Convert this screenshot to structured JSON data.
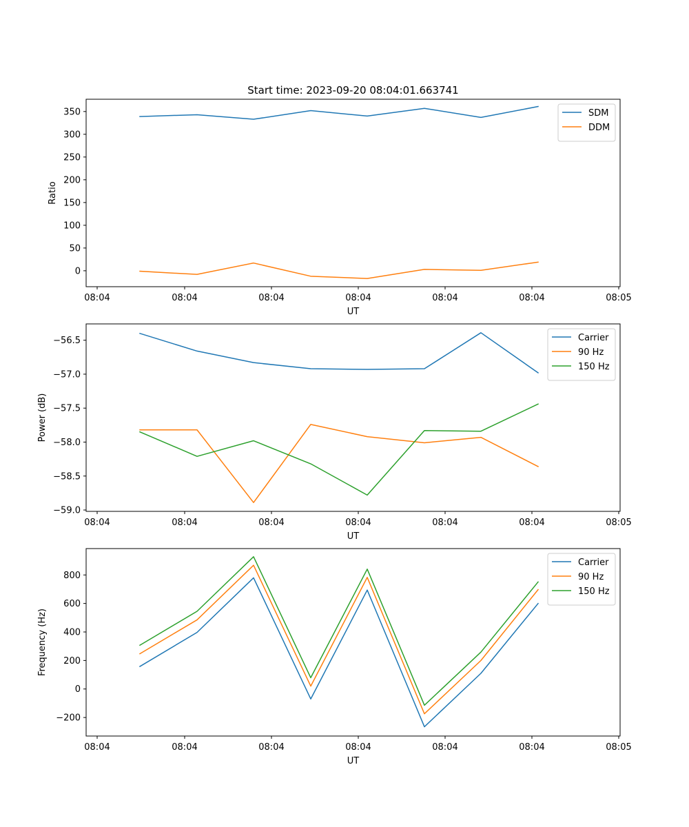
{
  "chart_data": [
    {
      "type": "line",
      "title": "Start time: 2023-09-20 08:04:01.663741",
      "xlabel": "UT",
      "ylabel": "Ratio",
      "x_tick_labels": [
        "08:04",
        "08:04",
        "08:04",
        "08:04",
        "08:04",
        "08:04",
        "08:05"
      ],
      "y_ticks": [
        0,
        50,
        100,
        150,
        200,
        250,
        300,
        350
      ],
      "y_tick_labels": [
        "0",
        "50",
        "100",
        "150",
        "200",
        "250",
        "300",
        "350"
      ],
      "ylim": [
        -35,
        377
      ],
      "legend_position": "top-right",
      "series": [
        {
          "name": "SDM",
          "color": "#1f77b4",
          "values": [
            339,
            343,
            333,
            352,
            340,
            357,
            337,
            361
          ]
        },
        {
          "name": "DDM",
          "color": "#ff7f0e",
          "values": [
            -1,
            -8,
            17,
            -12,
            -17,
            3,
            1,
            19
          ]
        }
      ]
    },
    {
      "type": "line",
      "title": "",
      "xlabel": "UT",
      "ylabel": "Power (dB)",
      "x_tick_labels": [
        "08:04",
        "08:04",
        "08:04",
        "08:04",
        "08:04",
        "08:04",
        "08:05"
      ],
      "y_ticks": [
        -59.0,
        -58.5,
        -58.0,
        -57.5,
        -57.0,
        -56.5
      ],
      "y_tick_labels": [
        "−59.0",
        "−58.5",
        "−58.0",
        "−57.5",
        "−57.0",
        "−56.5"
      ],
      "ylim": [
        -59.02,
        -56.26
      ],
      "legend_position": "top-right",
      "series": [
        {
          "name": "Carrier",
          "color": "#1f77b4",
          "values": [
            -56.4,
            -56.66,
            -56.83,
            -56.92,
            -56.93,
            -56.92,
            -56.39,
            -56.98
          ]
        },
        {
          "name": "90 Hz",
          "color": "#ff7f0e",
          "values": [
            -57.82,
            -57.82,
            -58.89,
            -57.74,
            -57.92,
            -58.01,
            -57.93,
            -58.36
          ]
        },
        {
          "name": "150 Hz",
          "color": "#2ca02c",
          "values": [
            -57.85,
            -58.21,
            -57.98,
            -58.32,
            -58.78,
            -57.83,
            -57.84,
            -57.44
          ]
        }
      ]
    },
    {
      "type": "line",
      "title": "",
      "xlabel": "UT",
      "ylabel": "Frequency (Hz)",
      "x_tick_labels": [
        "08:04",
        "08:04",
        "08:04",
        "08:04",
        "08:04",
        "08:04",
        "08:05"
      ],
      "y_ticks": [
        -200,
        0,
        200,
        400,
        600,
        800
      ],
      "y_tick_labels": [
        "−200",
        "0",
        "200",
        "400",
        "600",
        "800"
      ],
      "ylim": [
        -330,
        985
      ],
      "legend_position": "top-right",
      "series": [
        {
          "name": "Carrier",
          "color": "#1f77b4",
          "values": [
            158,
            397,
            780,
            -70,
            694,
            -265,
            110,
            600
          ]
        },
        {
          "name": "90 Hz",
          "color": "#ff7f0e",
          "values": [
            247,
            485,
            868,
            20,
            783,
            -174,
            200,
            697
          ]
        },
        {
          "name": "150 Hz",
          "color": "#2ca02c",
          "values": [
            307,
            545,
            928,
            79,
            841,
            -114,
            259,
            751
          ]
        }
      ]
    }
  ]
}
